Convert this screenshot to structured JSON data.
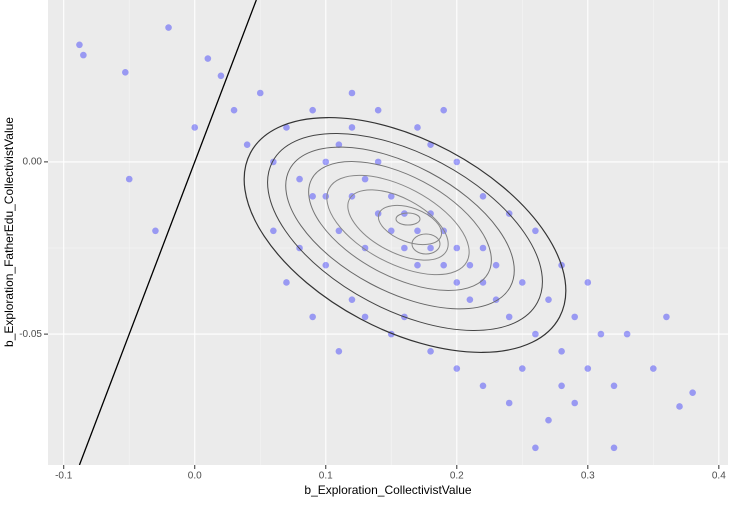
{
  "chart_data": {
    "type": "scatter",
    "x_label": "b_Exploration_CollectivistValue",
    "y_label": "b_Exploration_FatherEdu_CollectivistValue",
    "series": [
      {
        "color": "#0000ff",
        "x": [
          -0.088,
          -0.085,
          -0.053,
          -0.02,
          0.37,
          0.38,
          0.32,
          0.26,
          -0.05,
          -0.03,
          0.05,
          0.07,
          0.08,
          0.09,
          0.1,
          0.1,
          0.11,
          0.11,
          0.12,
          0.12,
          0.13,
          0.13,
          0.14,
          0.14,
          0.15,
          0.15,
          0.16,
          0.16,
          0.17,
          0.17,
          0.18,
          0.18,
          0.19,
          0.19,
          0.2,
          0.2,
          0.21,
          0.21,
          0.22,
          0.22,
          0.23,
          0.23,
          0.24,
          0.25,
          0.26,
          0.27,
          0.28,
          0.29,
          0.3,
          0.31,
          0.12,
          0.1,
          0.08,
          0.06,
          0.2,
          0.22,
          0.24,
          0.18,
          0.14,
          0.16,
          0.18,
          0.2,
          0.22,
          0.15,
          0.13,
          0.26,
          0.28,
          0.3,
          0.33,
          0.35,
          0.36,
          0.04,
          0.03,
          0.02,
          0.01,
          0.0,
          0.11,
          0.09,
          0.24,
          0.27,
          0.29,
          0.17,
          0.19,
          0.12,
          0.25,
          0.09,
          0.07,
          0.28,
          0.32,
          0.06
        ],
        "y": [
          0.034,
          0.031,
          0.026,
          0.039,
          -0.071,
          -0.067,
          -0.083,
          -0.083,
          -0.005,
          -0.02,
          0.02,
          0.01,
          -0.005,
          0.015,
          0.0,
          -0.01,
          0.005,
          -0.02,
          -0.01,
          0.01,
          -0.005,
          -0.025,
          -0.015,
          0.0,
          -0.02,
          -0.01,
          -0.025,
          -0.015,
          -0.02,
          -0.03,
          -0.025,
          -0.015,
          -0.03,
          -0.02,
          -0.035,
          -0.025,
          -0.03,
          -0.04,
          -0.035,
          -0.025,
          -0.04,
          -0.03,
          -0.045,
          -0.035,
          -0.05,
          -0.04,
          -0.055,
          -0.045,
          -0.06,
          -0.05,
          -0.04,
          -0.03,
          -0.025,
          -0.02,
          0.0,
          -0.01,
          -0.015,
          0.005,
          0.015,
          -0.045,
          -0.055,
          -0.06,
          -0.065,
          -0.05,
          -0.045,
          -0.02,
          -0.03,
          -0.035,
          -0.05,
          -0.06,
          -0.045,
          0.005,
          0.015,
          0.025,
          0.03,
          0.01,
          -0.055,
          -0.045,
          -0.07,
          -0.075,
          -0.07,
          0.01,
          0.015,
          0.02,
          -0.06,
          -0.01,
          -0.035,
          -0.065,
          -0.065,
          0.0
        ]
      }
    ],
    "xlim": [
      -0.112,
      0.407
    ],
    "ylim": [
      -0.088,
      0.047
    ],
    "xticks": [
      {
        "value": -0.1,
        "label": "-0.1"
      },
      {
        "value": 0,
        "label": "0.0"
      },
      {
        "value": 0.1,
        "label": "0.1"
      },
      {
        "value": 0.2,
        "label": "0.2"
      },
      {
        "value": 0.3,
        "label": "0.3"
      },
      {
        "value": 0.4,
        "label": "0.4"
      }
    ],
    "yticks": [
      {
        "value": -0.05,
        "label": "-0.05"
      },
      {
        "value": 0,
        "label": "0.00"
      }
    ],
    "grid": true
  }
}
